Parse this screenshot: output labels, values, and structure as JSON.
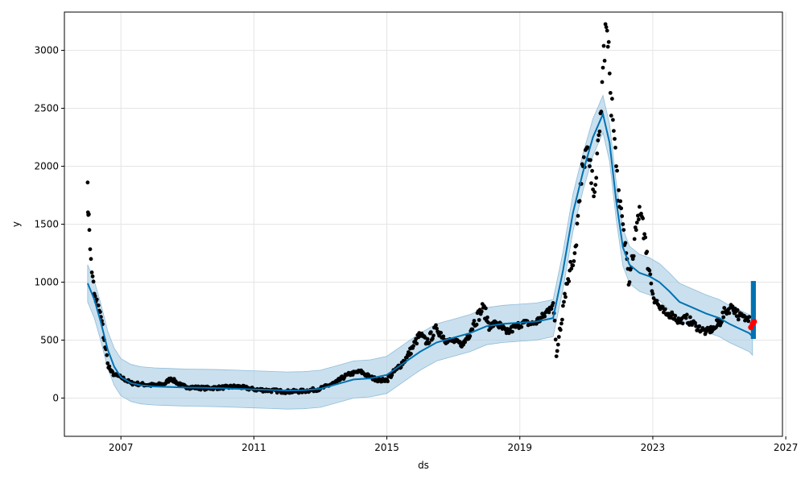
{
  "chart_data": {
    "type": "line",
    "title": "",
    "xlabel": "ds",
    "ylabel": "y",
    "xlim": [
      2005.3,
      2026.9
    ],
    "ylim": [
      -330,
      3330
    ],
    "grid": true,
    "x_ticks": [
      2007,
      2011,
      2015,
      2019,
      2023,
      2027
    ],
    "x_tick_labels": [
      "2007",
      "2011",
      "2015",
      "2019",
      "2023",
      "2027"
    ],
    "y_ticks": [
      0,
      500,
      1000,
      1500,
      2000,
      2500,
      3000
    ],
    "y_tick_labels": [
      "0",
      "500",
      "1000",
      "1500",
      "2000",
      "2500",
      "3000"
    ],
    "colors": {
      "observed": "#000000",
      "forecast": "#0072b2",
      "interval": "#a6cbe3",
      "recent": "#ff0000",
      "grid": "#e5e5e5"
    },
    "series": [
      {
        "role": "forecast",
        "x": [
          2006.0,
          2006.2,
          2006.4,
          2006.6,
          2006.8,
          2007.0,
          2007.3,
          2007.6,
          2008.0,
          2008.5,
          2009.0,
          2009.5,
          2010.0,
          2010.5,
          2011.0,
          2011.5,
          2012.0,
          2012.5,
          2013.0,
          2013.5,
          2014.0,
          2014.5,
          2015.0,
          2015.5,
          2016.0,
          2016.5,
          2017.0,
          2017.5,
          2018.0,
          2018.5,
          2019.0,
          2019.5,
          2020.0,
          2020.3,
          2020.6,
          2020.9,
          2021.2,
          2021.5,
          2021.7,
          2021.9,
          2022.1,
          2022.3,
          2022.6,
          2022.9,
          2023.2,
          2023.5,
          2023.8,
          2024.2,
          2024.6,
          2025.0,
          2025.3,
          2025.6,
          2025.9,
          2026.0
        ],
        "yhat": [
          990,
          850,
          650,
          420,
          270,
          180,
          130,
          110,
          100,
          95,
          90,
          88,
          85,
          80,
          75,
          70,
          65,
          68,
          80,
          120,
          160,
          170,
          200,
          300,
          400,
          480,
          520,
          560,
          620,
          640,
          650,
          660,
          690,
          1100,
          1600,
          1950,
          2250,
          2450,
          2200,
          1700,
          1300,
          1150,
          1080,
          1050,
          1000,
          920,
          830,
          780,
          730,
          690,
          640,
          600,
          560,
          530
        ],
        "yhat_lower": [
          830,
          690,
          490,
          260,
          110,
          20,
          -30,
          -50,
          -60,
          -65,
          -70,
          -72,
          -75,
          -80,
          -85,
          -90,
          -95,
          -92,
          -80,
          -40,
          0,
          10,
          40,
          140,
          240,
          320,
          360,
          400,
          460,
          480,
          490,
          500,
          530,
          940,
          1440,
          1790,
          2090,
          2290,
          2040,
          1540,
          1140,
          990,
          920,
          890,
          840,
          760,
          670,
          620,
          570,
          530,
          480,
          440,
          400,
          370
        ],
        "yhat_upper": [
          1150,
          1010,
          810,
          580,
          430,
          340,
          290,
          270,
          260,
          255,
          250,
          248,
          245,
          240,
          235,
          230,
          225,
          228,
          240,
          280,
          320,
          330,
          360,
          460,
          560,
          640,
          680,
          720,
          780,
          800,
          810,
          820,
          850,
          1260,
          1760,
          2110,
          2410,
          2610,
          2360,
          1860,
          1460,
          1310,
          1240,
          1210,
          1160,
          1080,
          990,
          940,
          890,
          850,
          800,
          760,
          720,
          690
        ]
      },
      {
        "role": "observed",
        "x": [
          2006.0,
          2006.02,
          2006.05,
          2006.1,
          2006.15,
          2006.2,
          2006.3,
          2006.4,
          2006.5,
          2006.6,
          2006.7,
          2006.8,
          2007.0,
          2007.3,
          2007.6,
          2008.0,
          2008.3,
          2008.5,
          2008.8,
          2009.0,
          2009.5,
          2010.0,
          2010.5,
          2011.0,
          2011.5,
          2012.0,
          2012.5,
          2013.0,
          2013.5,
          2013.8,
          2014.2,
          2014.5,
          2014.8,
          2015.0,
          2015.3,
          2015.6,
          2015.8,
          2016.0,
          2016.2,
          2016.5,
          2016.8,
          2017.0,
          2017.3,
          2017.6,
          2017.9,
          2018.1,
          2018.3,
          2018.6,
          2018.9,
          2019.1,
          2019.4,
          2019.7,
          2019.9,
          2020.0,
          2020.1,
          2020.2,
          2020.35,
          2020.5,
          2020.65,
          2020.8,
          2020.9,
          2021.0,
          2021.1,
          2021.2,
          2021.3,
          2021.4,
          2021.5,
          2021.6,
          2021.7,
          2021.8,
          2021.9,
          2022.0,
          2022.1,
          2022.2,
          2022.3,
          2022.4,
          2022.5,
          2022.6,
          2022.7,
          2022.8,
          2022.9,
          2023.0,
          2023.2,
          2023.4,
          2023.6,
          2023.8,
          2024.0,
          2024.3,
          2024.6,
          2024.9,
          2025.2,
          2025.4,
          2025.6,
          2025.8,
          2025.9
        ],
        "y": [
          1860,
          1580,
          1450,
          1200,
          1050,
          900,
          800,
          700,
          500,
          300,
          230,
          200,
          180,
          130,
          120,
          110,
          120,
          170,
          110,
          95,
          85,
          90,
          100,
          75,
          65,
          55,
          60,
          80,
          140,
          200,
          230,
          180,
          150,
          160,
          250,
          350,
          450,
          550,
          480,
          600,
          500,
          490,
          460,
          640,
          780,
          620,
          650,
          560,
          620,
          650,
          640,
          700,
          780,
          820,
          360,
          600,
          900,
          1100,
          1250,
          1700,
          2000,
          2150,
          2000,
          1800,
          1900,
          2300,
          2850,
          3200,
          2800,
          2400,
          2000,
          1650,
          1500,
          1250,
          1000,
          1200,
          1450,
          1650,
          1550,
          1250,
          1100,
          900,
          780,
          720,
          720,
          660,
          690,
          620,
          570,
          610,
          750,
          790,
          710,
          680,
          700
        ]
      },
      {
        "role": "recent",
        "x": [
          2025.95,
          2026.0,
          2026.05
        ],
        "y": [
          610,
          640,
          660
        ]
      }
    ],
    "forecast_band": {
      "x_start": 2025.95,
      "x_end": 2026.1,
      "lower": 510,
      "upper": 1010
    }
  }
}
